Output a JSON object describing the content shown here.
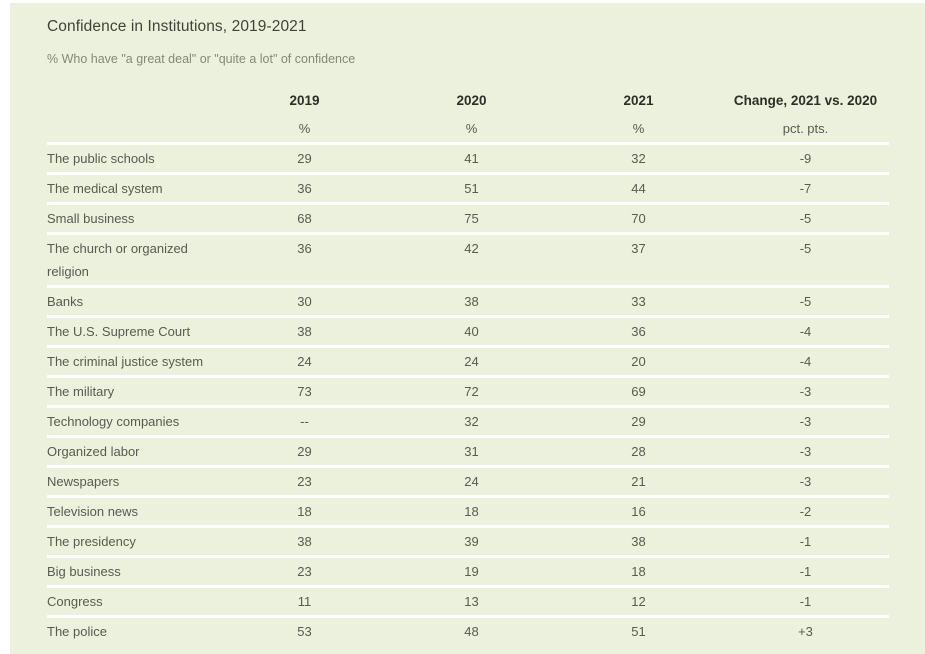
{
  "chart_data": {
    "type": "table",
    "title": "Confidence in Institutions, 2019-2021",
    "subtitle": "% Who have \"a great deal\" or \"quite a lot\" of confidence",
    "columns": [
      {
        "label": "",
        "sublabel": ""
      },
      {
        "label": "2019",
        "sublabel": "%"
      },
      {
        "label": "2020",
        "sublabel": "%"
      },
      {
        "label": "2021",
        "sublabel": "%"
      },
      {
        "label": "Change, 2021 vs. 2020",
        "sublabel": "pct. pts."
      }
    ],
    "rows": [
      {
        "institution": "The public schools",
        "values": [
          "29",
          "41",
          "32",
          "-9"
        ]
      },
      {
        "institution": "The medical system",
        "values": [
          "36",
          "51",
          "44",
          "-7"
        ]
      },
      {
        "institution": "Small business",
        "values": [
          "68",
          "75",
          "70",
          "-5"
        ]
      },
      {
        "institution": "The church or organized religion",
        "values": [
          "36",
          "42",
          "37",
          "-5"
        ]
      },
      {
        "institution": "Banks",
        "values": [
          "30",
          "38",
          "33",
          "-5"
        ]
      },
      {
        "institution": "The U.S. Supreme Court",
        "values": [
          "38",
          "40",
          "36",
          "-4"
        ]
      },
      {
        "institution": "The criminal justice system",
        "values": [
          "24",
          "24",
          "20",
          "-4"
        ]
      },
      {
        "institution": "The military",
        "values": [
          "73",
          "72",
          "69",
          "-3"
        ]
      },
      {
        "institution": "Technology companies",
        "values": [
          "--",
          "32",
          "29",
          "-3"
        ]
      },
      {
        "institution": "Organized labor",
        "values": [
          "29",
          "31",
          "28",
          "-3"
        ]
      },
      {
        "institution": "Newspapers",
        "values": [
          "23",
          "24",
          "21",
          "-3"
        ]
      },
      {
        "institution": "Television news",
        "values": [
          "18",
          "18",
          "16",
          "-2"
        ]
      },
      {
        "institution": "The presidency",
        "values": [
          "38",
          "39",
          "38",
          "-1"
        ]
      },
      {
        "institution": "Big business",
        "values": [
          "23",
          "19",
          "18",
          "-1"
        ]
      },
      {
        "institution": "Congress",
        "values": [
          "11",
          "13",
          "12",
          "-1"
        ]
      },
      {
        "institution": "The police",
        "values": [
          "53",
          "48",
          "51",
          "+3"
        ]
      }
    ],
    "layout": {
      "legend": "none",
      "grid": "white row separators on light green panel"
    },
    "colors": {
      "panel_bg": "#ebf1dc",
      "row_separator": "#ffffff",
      "title_text": "#3f4339",
      "subtitle_text": "#84887c",
      "header_text": "#2c2f28",
      "body_text": "#575b51"
    }
  }
}
